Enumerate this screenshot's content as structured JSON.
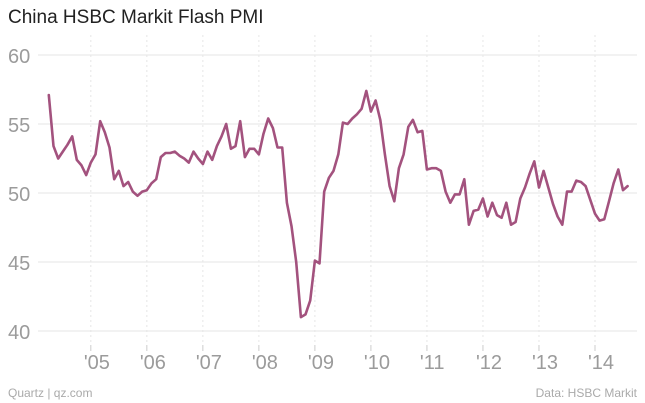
{
  "chart_data": {
    "type": "line",
    "title": "China HSBC Markit Flash PMI",
    "xlabel": "",
    "ylabel": "",
    "ylim": [
      40,
      60
    ],
    "yticks": [
      40,
      45,
      50,
      55,
      60
    ],
    "xlim": [
      2004.2,
      2014.75
    ],
    "xticks": [
      {
        "label": "'05",
        "x": 2005.0
      },
      {
        "label": "'06",
        "x": 2006.0
      },
      {
        "label": "'07",
        "x": 2007.0
      },
      {
        "label": "'08",
        "x": 2008.0
      },
      {
        "label": "'09",
        "x": 2009.0
      },
      {
        "label": "'10",
        "x": 2010.0
      },
      {
        "label": "'11",
        "x": 2011.0
      },
      {
        "label": "'12",
        "x": 2012.0
      },
      {
        "label": "'13",
        "x": 2013.0
      },
      {
        "label": "'14",
        "x": 2014.0
      }
    ],
    "grid": {
      "y": true,
      "x": true,
      "x_dashed": true
    },
    "series": [
      {
        "name": "",
        "color": "#a3527e",
        "points": [
          [
            2004.25,
            57.1
          ],
          [
            2004.333,
            53.4
          ],
          [
            2004.417,
            52.5
          ],
          [
            2004.5,
            53.0
          ],
          [
            2004.583,
            53.5
          ],
          [
            2004.667,
            54.1
          ],
          [
            2004.75,
            52.4
          ],
          [
            2004.833,
            52.0
          ],
          [
            2004.917,
            51.3
          ],
          [
            2005.0,
            52.2
          ],
          [
            2005.083,
            52.8
          ],
          [
            2005.167,
            55.2
          ],
          [
            2005.25,
            54.4
          ],
          [
            2005.333,
            53.3
          ],
          [
            2005.417,
            51.0
          ],
          [
            2005.5,
            51.6
          ],
          [
            2005.583,
            50.5
          ],
          [
            2005.667,
            50.8
          ],
          [
            2005.75,
            50.1
          ],
          [
            2005.833,
            49.8
          ],
          [
            2005.917,
            50.1
          ],
          [
            2006.0,
            50.2
          ],
          [
            2006.083,
            50.7
          ],
          [
            2006.167,
            51.0
          ],
          [
            2006.25,
            52.6
          ],
          [
            2006.333,
            52.9
          ],
          [
            2006.417,
            52.9
          ],
          [
            2006.5,
            53.0
          ],
          [
            2006.583,
            52.7
          ],
          [
            2006.667,
            52.5
          ],
          [
            2006.75,
            52.2
          ],
          [
            2006.833,
            53.0
          ],
          [
            2006.917,
            52.5
          ],
          [
            2007.0,
            52.1
          ],
          [
            2007.083,
            53.0
          ],
          [
            2007.167,
            52.4
          ],
          [
            2007.25,
            53.4
          ],
          [
            2007.333,
            54.1
          ],
          [
            2007.417,
            55.0
          ],
          [
            2007.5,
            53.2
          ],
          [
            2007.583,
            53.4
          ],
          [
            2007.667,
            55.2
          ],
          [
            2007.75,
            52.6
          ],
          [
            2007.833,
            53.2
          ],
          [
            2007.917,
            53.2
          ],
          [
            2008.0,
            52.8
          ],
          [
            2008.083,
            54.3
          ],
          [
            2008.167,
            55.4
          ],
          [
            2008.25,
            54.7
          ],
          [
            2008.333,
            53.3
          ],
          [
            2008.417,
            53.3
          ],
          [
            2008.5,
            49.3
          ],
          [
            2008.583,
            47.6
          ],
          [
            2008.667,
            45.0
          ],
          [
            2008.75,
            41.0
          ],
          [
            2008.833,
            41.2
          ],
          [
            2008.917,
            42.2
          ],
          [
            2009.0,
            45.1
          ],
          [
            2009.083,
            44.9
          ],
          [
            2009.167,
            50.1
          ],
          [
            2009.25,
            51.1
          ],
          [
            2009.333,
            51.6
          ],
          [
            2009.417,
            52.8
          ],
          [
            2009.5,
            55.1
          ],
          [
            2009.583,
            55.0
          ],
          [
            2009.667,
            55.4
          ],
          [
            2009.75,
            55.7
          ],
          [
            2009.833,
            56.1
          ],
          [
            2009.917,
            57.4
          ],
          [
            2010.0,
            55.9
          ],
          [
            2010.083,
            56.7
          ],
          [
            2010.167,
            55.3
          ],
          [
            2010.25,
            52.8
          ],
          [
            2010.333,
            50.5
          ],
          [
            2010.417,
            49.4
          ],
          [
            2010.5,
            51.8
          ],
          [
            2010.583,
            52.8
          ],
          [
            2010.667,
            54.8
          ],
          [
            2010.75,
            55.3
          ],
          [
            2010.833,
            54.4
          ],
          [
            2010.917,
            54.5
          ],
          [
            2011.0,
            51.7
          ],
          [
            2011.083,
            51.8
          ],
          [
            2011.167,
            51.8
          ],
          [
            2011.25,
            51.6
          ],
          [
            2011.333,
            50.1
          ],
          [
            2011.417,
            49.3
          ],
          [
            2011.5,
            49.9
          ],
          [
            2011.583,
            49.9
          ],
          [
            2011.667,
            51.0
          ],
          [
            2011.75,
            47.7
          ],
          [
            2011.833,
            48.7
          ],
          [
            2011.917,
            48.8
          ],
          [
            2012.0,
            49.6
          ],
          [
            2012.083,
            48.3
          ],
          [
            2012.167,
            49.3
          ],
          [
            2012.25,
            48.4
          ],
          [
            2012.333,
            48.2
          ],
          [
            2012.417,
            49.3
          ],
          [
            2012.5,
            47.7
          ],
          [
            2012.583,
            47.9
          ],
          [
            2012.667,
            49.6
          ],
          [
            2012.75,
            50.4
          ],
          [
            2012.833,
            51.4
          ],
          [
            2012.917,
            52.3
          ],
          [
            2013.0,
            50.4
          ],
          [
            2013.083,
            51.6
          ],
          [
            2013.167,
            50.4
          ],
          [
            2013.25,
            49.2
          ],
          [
            2013.333,
            48.3
          ],
          [
            2013.417,
            47.7
          ],
          [
            2013.5,
            50.1
          ],
          [
            2013.583,
            50.1
          ],
          [
            2013.667,
            50.9
          ],
          [
            2013.75,
            50.8
          ],
          [
            2013.833,
            50.5
          ],
          [
            2013.917,
            49.5
          ],
          [
            2014.0,
            48.5
          ],
          [
            2014.083,
            48.0
          ],
          [
            2014.167,
            48.1
          ],
          [
            2014.25,
            49.4
          ],
          [
            2014.333,
            50.7
          ],
          [
            2014.417,
            51.7
          ],
          [
            2014.5,
            50.2
          ],
          [
            2014.583,
            50.5
          ]
        ]
      }
    ]
  },
  "footer": {
    "source_left": "Quartz | qz.com",
    "source_right": "Data: HSBC Markit"
  }
}
